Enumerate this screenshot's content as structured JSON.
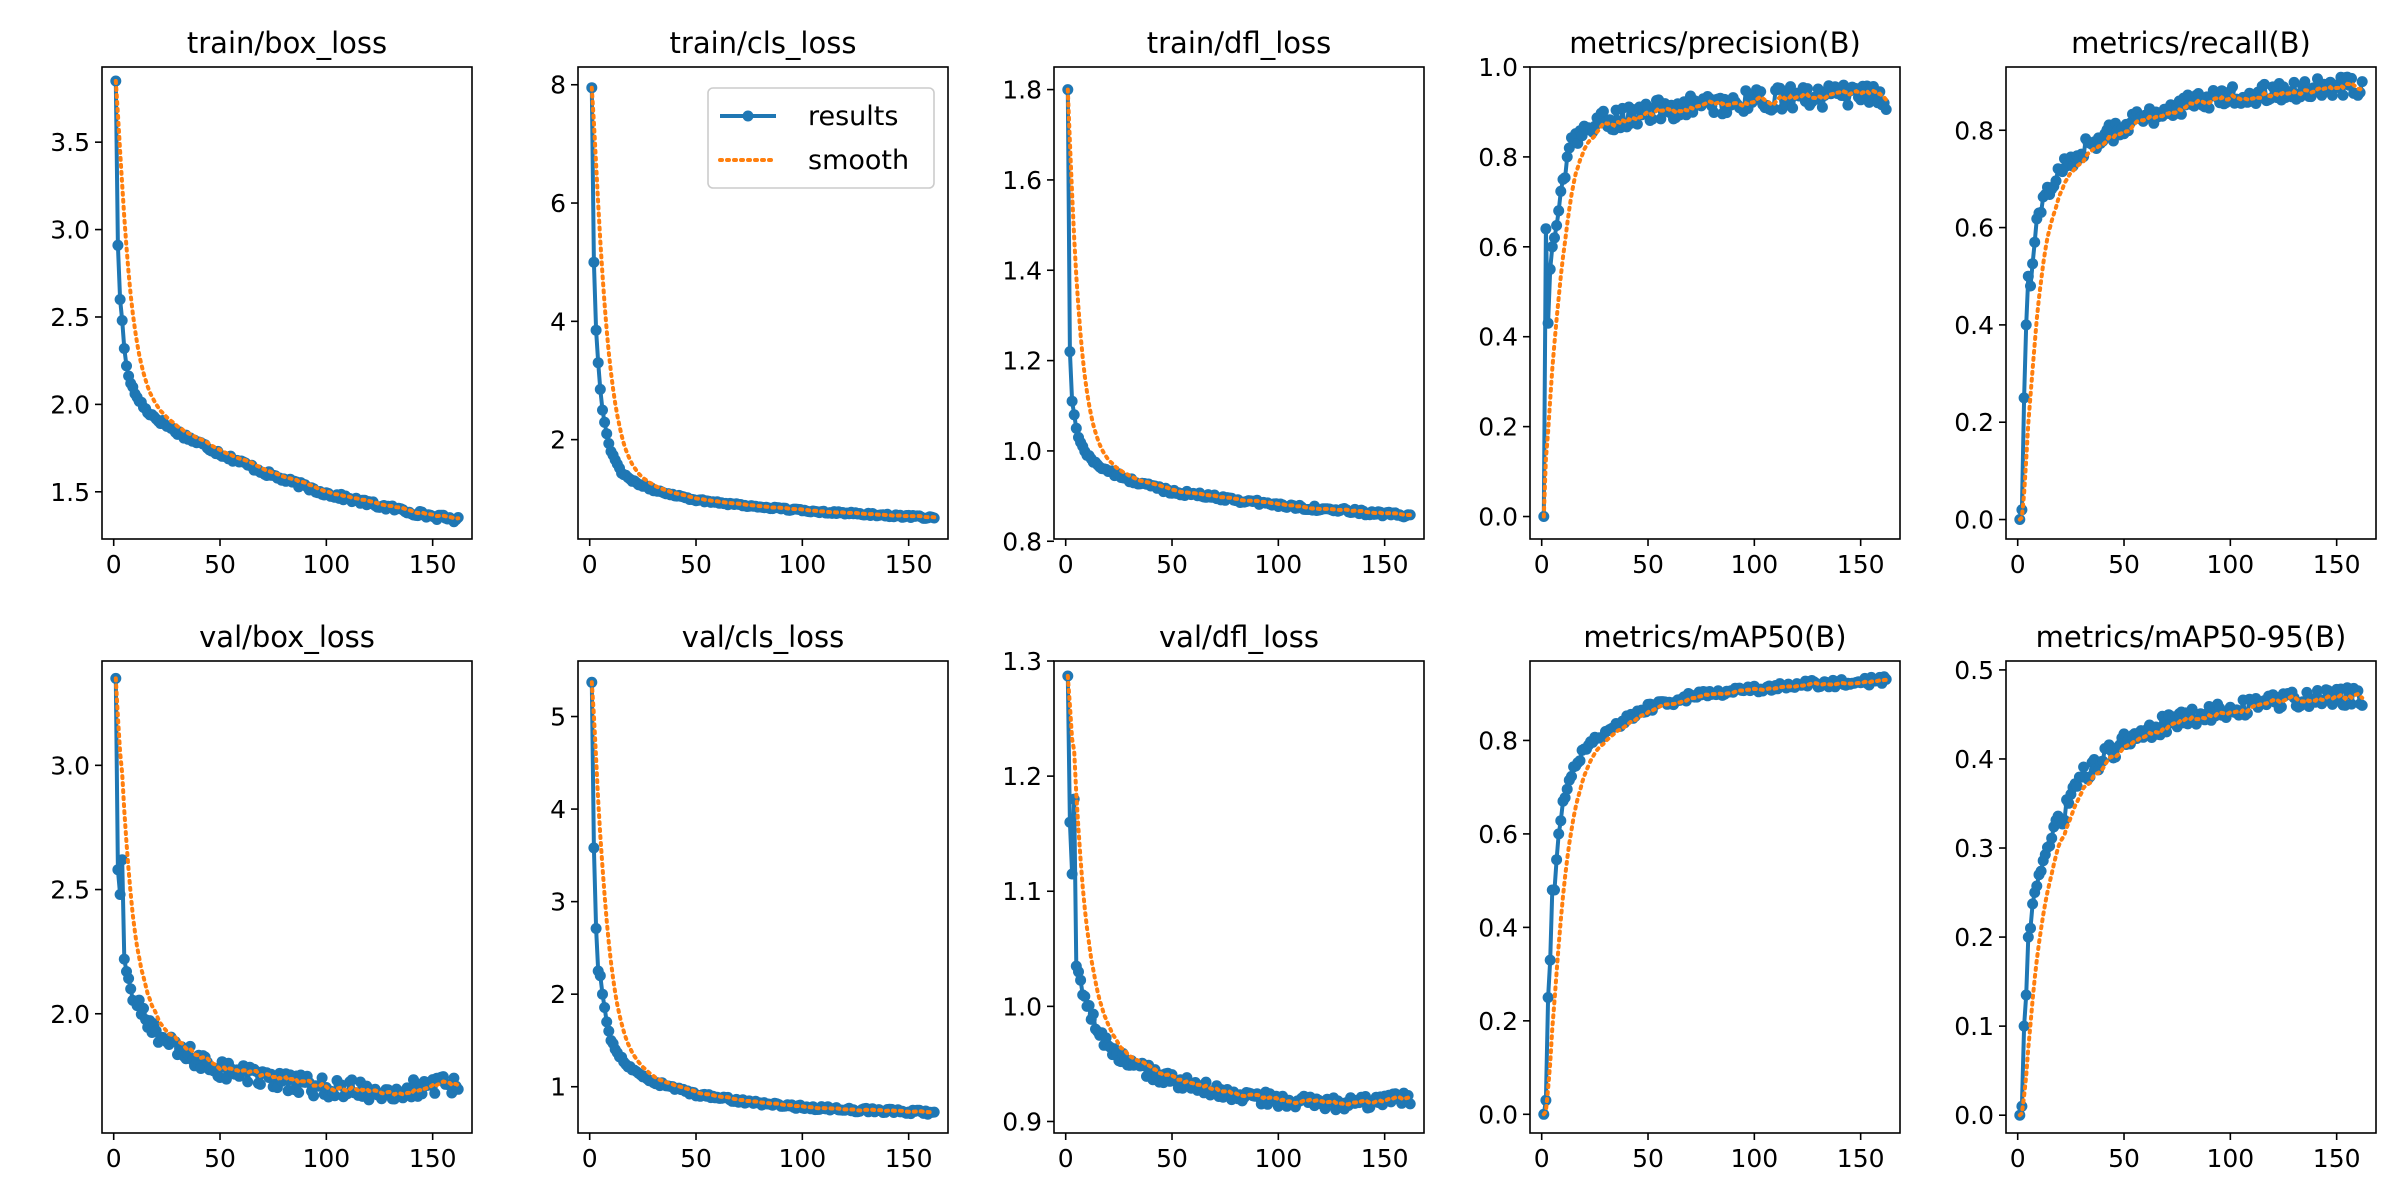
{
  "colors": {
    "results": "#1f77b4",
    "smooth": "#ff7f0e",
    "axis": "#000000"
  },
  "legend": {
    "results_label": "results",
    "smooth_label": "smooth",
    "placement": "top-right",
    "panel": "train/cls_loss"
  },
  "chart_data": [
    {
      "type": "line",
      "title": "train/box_loss",
      "epochs": 162,
      "ylim": [
        1.23,
        3.93
      ],
      "xticks": [
        0,
        50,
        100,
        150
      ],
      "yticks": [
        1.5,
        2.0,
        2.5,
        3.0,
        3.5
      ],
      "ytick_labels": [
        "1.5",
        "2.0",
        "2.5",
        "3.0",
        "3.5"
      ],
      "shape": "decay",
      "anchors": [
        [
          1,
          3.85
        ],
        [
          2,
          2.91
        ],
        [
          3,
          2.6
        ],
        [
          4,
          2.48
        ],
        [
          5,
          2.32
        ],
        [
          6,
          2.22
        ],
        [
          8,
          2.12
        ],
        [
          10,
          2.06
        ],
        [
          15,
          1.97
        ],
        [
          20,
          1.92
        ],
        [
          30,
          1.84
        ],
        [
          50,
          1.72
        ],
        [
          75,
          1.59
        ],
        [
          100,
          1.49
        ],
        [
          125,
          1.42
        ],
        [
          150,
          1.36
        ],
        [
          162,
          1.34
        ]
      ],
      "noise": 0.015,
      "series": [
        {
          "name": "results"
        },
        {
          "name": "smooth"
        }
      ]
    },
    {
      "type": "line",
      "title": "train/cls_loss",
      "epochs": 162,
      "ylim": [
        0.32,
        8.3
      ],
      "xticks": [
        0,
        50,
        100,
        150
      ],
      "yticks": [
        2,
        4,
        6,
        8
      ],
      "ytick_labels": [
        "2",
        "4",
        "6",
        "8"
      ],
      "shape": "decay",
      "anchors": [
        [
          1,
          7.95
        ],
        [
          2,
          5.0
        ],
        [
          3,
          3.85
        ],
        [
          4,
          3.3
        ],
        [
          5,
          2.85
        ],
        [
          6,
          2.5
        ],
        [
          8,
          2.1
        ],
        [
          10,
          1.8
        ],
        [
          15,
          1.45
        ],
        [
          20,
          1.3
        ],
        [
          30,
          1.15
        ],
        [
          50,
          0.98
        ],
        [
          75,
          0.88
        ],
        [
          100,
          0.8
        ],
        [
          125,
          0.75
        ],
        [
          150,
          0.7
        ],
        [
          162,
          0.68
        ]
      ],
      "noise": 0.02,
      "series": [
        {
          "name": "results"
        },
        {
          "name": "smooth"
        }
      ]
    },
    {
      "type": "line",
      "title": "train/dfl_loss",
      "epochs": 162,
      "ylim": [
        0.805,
        1.85
      ],
      "xticks": [
        0,
        50,
        100,
        150
      ],
      "yticks": [
        0.8,
        1.0,
        1.2,
        1.4,
        1.6,
        1.8
      ],
      "ytick_labels": [
        "0.8",
        "1.0",
        "1.2",
        "1.4",
        "1.6",
        "1.8"
      ],
      "shape": "decay",
      "anchors": [
        [
          1,
          1.8
        ],
        [
          2,
          1.22
        ],
        [
          3,
          1.11
        ],
        [
          4,
          1.08
        ],
        [
          5,
          1.05
        ],
        [
          6,
          1.03
        ],
        [
          8,
          1.01
        ],
        [
          10,
          0.99
        ],
        [
          15,
          0.97
        ],
        [
          20,
          0.955
        ],
        [
          30,
          0.935
        ],
        [
          50,
          0.91
        ],
        [
          75,
          0.895
        ],
        [
          100,
          0.88
        ],
        [
          125,
          0.87
        ],
        [
          150,
          0.86
        ],
        [
          162,
          0.855
        ]
      ],
      "noise": 0.005,
      "series": [
        {
          "name": "results"
        },
        {
          "name": "smooth"
        }
      ]
    },
    {
      "type": "line",
      "title": "metrics/precision(B)",
      "epochs": 162,
      "ylim": [
        -0.05,
        1.0
      ],
      "xticks": [
        0,
        50,
        100,
        150
      ],
      "yticks": [
        0.0,
        0.2,
        0.4,
        0.6,
        0.8,
        1.0
      ],
      "ytick_labels": [
        "0.0",
        "0.2",
        "0.4",
        "0.6",
        "0.8",
        "1.0"
      ],
      "shape": "rise",
      "anchors": [
        [
          1,
          0.0
        ],
        [
          2,
          0.64
        ],
        [
          3,
          0.43
        ],
        [
          4,
          0.55
        ],
        [
          5,
          0.6
        ],
        [
          6,
          0.62
        ],
        [
          8,
          0.68
        ],
        [
          10,
          0.75
        ],
        [
          12,
          0.8
        ],
        [
          15,
          0.83
        ],
        [
          20,
          0.86
        ],
        [
          30,
          0.88
        ],
        [
          50,
          0.9
        ],
        [
          75,
          0.915
        ],
        [
          100,
          0.925
        ],
        [
          125,
          0.935
        ],
        [
          150,
          0.935
        ],
        [
          162,
          0.93
        ]
      ],
      "noise": 0.025,
      "series": [
        {
          "name": "results"
        },
        {
          "name": "smooth"
        }
      ]
    },
    {
      "type": "line",
      "title": "metrics/recall(B)",
      "epochs": 162,
      "ylim": [
        -0.04,
        0.93
      ],
      "xticks": [
        0,
        50,
        100,
        150
      ],
      "yticks": [
        0.0,
        0.2,
        0.4,
        0.6,
        0.8
      ],
      "ytick_labels": [
        "0.0",
        "0.2",
        "0.4",
        "0.6",
        "0.8"
      ],
      "shape": "rise",
      "anchors": [
        [
          1,
          0.0
        ],
        [
          2,
          0.02
        ],
        [
          3,
          0.25
        ],
        [
          4,
          0.4
        ],
        [
          5,
          0.5
        ],
        [
          6,
          0.48
        ],
        [
          8,
          0.57
        ],
        [
          10,
          0.63
        ],
        [
          15,
          0.68
        ],
        [
          20,
          0.72
        ],
        [
          30,
          0.76
        ],
        [
          50,
          0.81
        ],
        [
          75,
          0.85
        ],
        [
          100,
          0.87
        ],
        [
          125,
          0.88
        ],
        [
          150,
          0.89
        ],
        [
          162,
          0.89
        ]
      ],
      "noise": 0.02,
      "series": [
        {
          "name": "results"
        },
        {
          "name": "smooth"
        }
      ]
    },
    {
      "type": "line",
      "title": "val/box_loss",
      "epochs": 162,
      "ylim": [
        1.52,
        3.42
      ],
      "xticks": [
        0,
        50,
        100,
        150
      ],
      "yticks": [
        2.0,
        2.5,
        3.0
      ],
      "ytick_labels": [
        "2.0",
        "2.5",
        "3.0"
      ],
      "shape": "decay",
      "anchors": [
        [
          1,
          3.35
        ],
        [
          2,
          2.58
        ],
        [
          3,
          2.48
        ],
        [
          4,
          2.62
        ],
        [
          5,
          2.22
        ],
        [
          6,
          2.17
        ],
        [
          8,
          2.1
        ],
        [
          10,
          2.05
        ],
        [
          15,
          1.97
        ],
        [
          20,
          1.93
        ],
        [
          30,
          1.85
        ],
        [
          50,
          1.78
        ],
        [
          75,
          1.73
        ],
        [
          100,
          1.7
        ],
        [
          125,
          1.69
        ],
        [
          150,
          1.7
        ],
        [
          162,
          1.72
        ]
      ],
      "noise": 0.04,
      "series": [
        {
          "name": "results"
        },
        {
          "name": "smooth"
        }
      ]
    },
    {
      "type": "line",
      "title": "val/cls_loss",
      "epochs": 162,
      "ylim": [
        0.5,
        5.6
      ],
      "xticks": [
        0,
        50,
        100,
        150
      ],
      "yticks": [
        1,
        2,
        3,
        4,
        5
      ],
      "ytick_labels": [
        "1",
        "2",
        "3",
        "4",
        "5"
      ],
      "shape": "decay",
      "anchors": [
        [
          1,
          5.37
        ],
        [
          2,
          3.58
        ],
        [
          3,
          2.71
        ],
        [
          4,
          2.25
        ],
        [
          5,
          2.2
        ],
        [
          6,
          2.0
        ],
        [
          8,
          1.7
        ],
        [
          10,
          1.5
        ],
        [
          15,
          1.3
        ],
        [
          20,
          1.18
        ],
        [
          30,
          1.05
        ],
        [
          50,
          0.92
        ],
        [
          75,
          0.83
        ],
        [
          100,
          0.78
        ],
        [
          125,
          0.75
        ],
        [
          150,
          0.73
        ],
        [
          162,
          0.72
        ]
      ],
      "noise": 0.02,
      "series": [
        {
          "name": "results"
        },
        {
          "name": "smooth"
        }
      ]
    },
    {
      "type": "line",
      "title": "val/dfl_loss",
      "epochs": 162,
      "ylim": [
        0.89,
        1.3
      ],
      "xticks": [
        0,
        50,
        100,
        150
      ],
      "yticks": [
        0.9,
        1.0,
        1.1,
        1.2,
        1.3
      ],
      "ytick_labels": [
        "0.9",
        "1.0",
        "1.1",
        "1.2",
        "1.3"
      ],
      "shape": "decay",
      "anchors": [
        [
          1,
          1.287
        ],
        [
          2,
          1.16
        ],
        [
          3,
          1.115
        ],
        [
          4,
          1.18
        ],
        [
          5,
          1.035
        ],
        [
          6,
          1.03
        ],
        [
          8,
          1.01
        ],
        [
          10,
          1.0
        ],
        [
          15,
          0.98
        ],
        [
          20,
          0.965
        ],
        [
          30,
          0.95
        ],
        [
          50,
          0.935
        ],
        [
          75,
          0.925
        ],
        [
          100,
          0.918
        ],
        [
          125,
          0.915
        ],
        [
          150,
          0.917
        ],
        [
          162,
          0.92
        ]
      ],
      "noise": 0.006,
      "series": [
        {
          "name": "results"
        },
        {
          "name": "smooth"
        }
      ]
    },
    {
      "type": "line",
      "title": "metrics/mAP50(B)",
      "epochs": 162,
      "ylim": [
        -0.04,
        0.97
      ],
      "xticks": [
        0,
        50,
        100,
        150
      ],
      "yticks": [
        0.0,
        0.2,
        0.4,
        0.6,
        0.8
      ],
      "ytick_labels": [
        "0.0",
        "0.2",
        "0.4",
        "0.6",
        "0.8"
      ],
      "shape": "rise",
      "anchors": [
        [
          1,
          0.0
        ],
        [
          2,
          0.03
        ],
        [
          3,
          0.25
        ],
        [
          4,
          0.33
        ],
        [
          5,
          0.48
        ],
        [
          6,
          0.48
        ],
        [
          8,
          0.6
        ],
        [
          10,
          0.67
        ],
        [
          15,
          0.74
        ],
        [
          20,
          0.78
        ],
        [
          30,
          0.82
        ],
        [
          50,
          0.87
        ],
        [
          75,
          0.9
        ],
        [
          100,
          0.91
        ],
        [
          125,
          0.92
        ],
        [
          150,
          0.925
        ],
        [
          162,
          0.93
        ]
      ],
      "noise": 0.008,
      "series": [
        {
          "name": "results"
        },
        {
          "name": "smooth"
        }
      ]
    },
    {
      "type": "line",
      "title": "metrics/mAP50-95(B)",
      "epochs": 162,
      "ylim": [
        -0.02,
        0.51
      ],
      "xticks": [
        0,
        50,
        100,
        150
      ],
      "yticks": [
        0.0,
        0.1,
        0.2,
        0.3,
        0.4,
        0.5
      ],
      "ytick_labels": [
        "0.0",
        "0.1",
        "0.2",
        "0.3",
        "0.4",
        "0.5"
      ],
      "shape": "rise",
      "anchors": [
        [
          1,
          0.0
        ],
        [
          2,
          0.01
        ],
        [
          3,
          0.1
        ],
        [
          4,
          0.135
        ],
        [
          5,
          0.2
        ],
        [
          6,
          0.21
        ],
        [
          8,
          0.25
        ],
        [
          10,
          0.27
        ],
        [
          15,
          0.31
        ],
        [
          20,
          0.33
        ],
        [
          30,
          0.38
        ],
        [
          50,
          0.42
        ],
        [
          75,
          0.445
        ],
        [
          100,
          0.455
        ],
        [
          125,
          0.465
        ],
        [
          150,
          0.47
        ],
        [
          162,
          0.47
        ]
      ],
      "noise": 0.01,
      "series": [
        {
          "name": "results"
        },
        {
          "name": "smooth"
        }
      ]
    }
  ]
}
